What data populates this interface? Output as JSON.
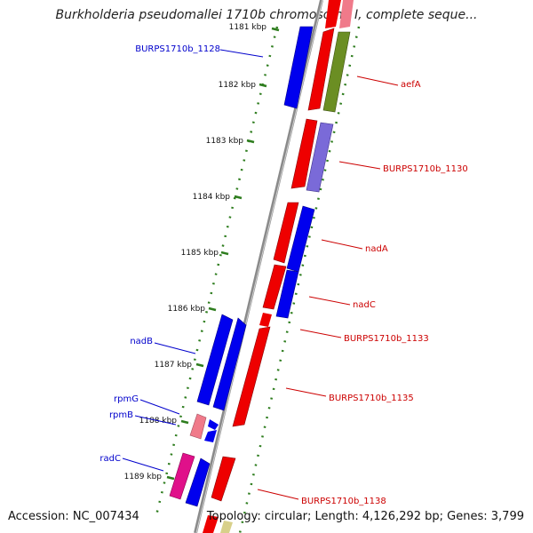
{
  "title": "Burkholderia pseudomallei 1710b chromosome I, complete seque...",
  "footer": {
    "accession": "Accession: NC_007434",
    "summary": "Topology: circular; Length: 4,126,292 bp; Genes: 3,799"
  },
  "colors": {
    "backbone": "#8a8a8a",
    "tick": "#2e7d1e",
    "forward_label": "#0000cc",
    "reverse_label": "#cc0000",
    "blue": "#0000ee",
    "red": "#ee0000",
    "olive": "#6b8e23",
    "lavender": "#7a6ad8",
    "pink": "#e8609a",
    "magenta": "#e0108a",
    "khaki": "#d8d08a"
  },
  "ticks": [
    "1181 kbp",
    "1182 kbp",
    "1183 kbp",
    "1184 kbp",
    "1185 kbp",
    "1186 kbp",
    "1187 kbp",
    "1188 kbp",
    "1189 kbp"
  ],
  "labels": {
    "forward": [
      "BURPS1710b_1128",
      "nadB",
      "rpmG",
      "rpmB",
      "radC"
    ],
    "reverse": [
      "aefA",
      "BURPS1710b_1130",
      "nadA",
      "nadC",
      "BURPS1710b_1133",
      "BURPS1710b_1135",
      "BURPS1710b_1138"
    ]
  }
}
